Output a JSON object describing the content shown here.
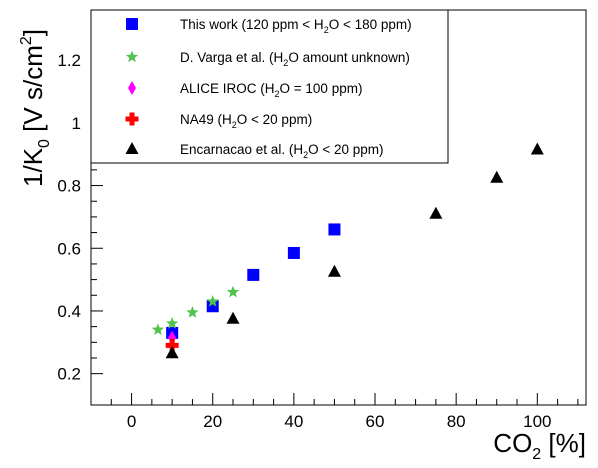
{
  "chart_data": {
    "type": "scatter",
    "xlabel": {
      "base": "CO",
      "sub": "2",
      "unit": " [%]"
    },
    "ylabel": {
      "pre": "1/K",
      "sub": "0",
      "mid": " [V s/cm",
      "sup": "2",
      "post": "]"
    },
    "xlim": [
      -10,
      112
    ],
    "ylim": [
      0.1,
      1.36
    ],
    "xticks": [
      0,
      20,
      40,
      60,
      80,
      100
    ],
    "yticks": [
      0.2,
      0.4,
      0.6,
      0.8,
      1,
      1.2
    ],
    "xtick_labels": [
      "0",
      "20",
      "40",
      "60",
      "80",
      "100"
    ],
    "ytick_labels": [
      "0.2",
      "0.4",
      "0.6",
      "0.8",
      "1",
      "1.2"
    ],
    "grid": false,
    "legend_position": "top-left",
    "series": [
      {
        "name": "This work (120 ppm < H2O < 180 ppm)",
        "legend": {
          "pre": "This work (120 ppm < H",
          "sub": "2",
          "post": "O < 180 ppm)"
        },
        "marker": "square",
        "color": "#0000ff",
        "x": [
          10,
          20,
          30,
          40,
          50
        ],
        "y": [
          0.33,
          0.415,
          0.515,
          0.585,
          0.66
        ]
      },
      {
        "name": "D. Varga et al. (H2O amount unknown)",
        "legend": {
          "pre": "D. Varga et al.  (H",
          "sub": "2",
          "post": "O amount unknown)"
        },
        "marker": "star",
        "color": "#4fc24f",
        "x": [
          6.5,
          10,
          15,
          20,
          25
        ],
        "y": [
          0.34,
          0.36,
          0.395,
          0.43,
          0.46
        ]
      },
      {
        "name": "ALICE IROC (H2O = 100 ppm)",
        "legend": {
          "pre": "ALICE IROC (H",
          "sub": "2",
          "post": "O = 100 ppm)"
        },
        "marker": "diamond",
        "color": "#ff00ff",
        "x": [
          10
        ],
        "y": [
          0.315
        ]
      },
      {
        "name": "NA49 (H2O < 20 ppm)",
        "legend": {
          "pre": "NA49 (H",
          "sub": "2",
          "post": "O < 20 ppm)"
        },
        "marker": "cross",
        "color": "#ff0000",
        "x": [
          10
        ],
        "y": [
          0.29
        ]
      },
      {
        "name": "Encarnacao et al. (H2O < 20 ppm)",
        "legend": {
          "pre": "Encarnacao et al.  (H",
          "sub": "2",
          "post": "O < 20 ppm)"
        },
        "marker": "triangle",
        "color": "#000000",
        "x": [
          10,
          25,
          50,
          75,
          90,
          100
        ],
        "y": [
          0.265,
          0.375,
          0.525,
          0.71,
          0.825,
          0.915
        ]
      }
    ]
  }
}
